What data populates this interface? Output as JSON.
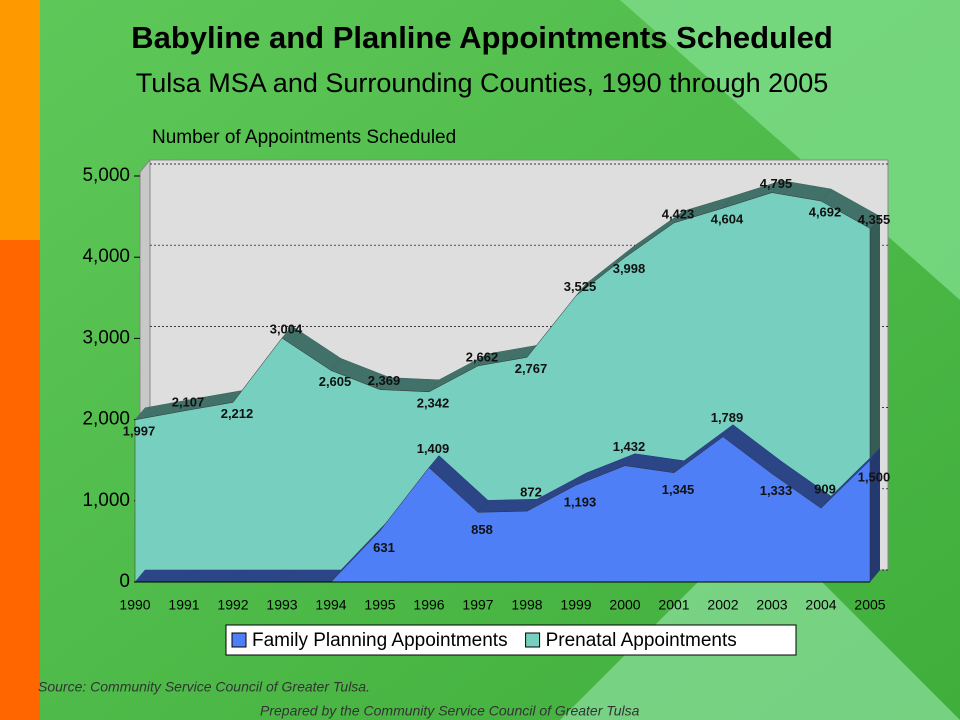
{
  "chart_data": {
    "type": "area",
    "title": "Babyline and Planline Appointments Scheduled",
    "subtitle": "Tulsa MSA and Surrounding Counties, 1990 through 2005",
    "y_label": "Number of Appointments Scheduled",
    "categories": [
      "1990",
      "1991",
      "1992",
      "1993",
      "1994",
      "1995",
      "1996",
      "1997",
      "1998",
      "1999",
      "2000",
      "2001",
      "2002",
      "2003",
      "2004",
      "2005"
    ],
    "series": [
      {
        "name": "Prenatal Appointments",
        "color": "#77cfc0",
        "values": [
          1997,
          2107,
          2212,
          3004,
          2605,
          2369,
          2342,
          2662,
          2767,
          3525,
          3998,
          4423,
          4604,
          4795,
          4692,
          4355
        ],
        "value_labels": [
          "1,997",
          "2,107",
          "2,212",
          "3,004",
          "2,605",
          "2,369",
          "2,342",
          "2,662",
          "2,767",
          "3,525",
          "3,998",
          "4,423",
          "4,604",
          "4,795",
          "4,692",
          "4,355"
        ]
      },
      {
        "name": "Family Planning Appointments",
        "color": "#4f7ff7",
        "values": [
          0,
          0,
          0,
          0,
          0,
          631,
          1409,
          858,
          872,
          1193,
          1432,
          1345,
          1789,
          1333,
          909,
          1500
        ],
        "value_labels": [
          null,
          null,
          null,
          null,
          null,
          "631",
          "1,409",
          "858",
          "872",
          "1,193",
          "1,432",
          "1,345",
          "1,789",
          "1,333",
          "909",
          "1,500"
        ]
      }
    ],
    "legend_order": [
      1,
      0
    ],
    "ylim": [
      0,
      5000
    ],
    "yticks": [
      0,
      {
        "value": 1000,
        "label": "1,000"
      },
      {
        "value": 2000,
        "label": "2,000"
      },
      {
        "value": 3000,
        "label": "3,000"
      },
      {
        "value": 4000,
        "label": "4,000"
      },
      {
        "value": 5000,
        "label": "5,000"
      }
    ],
    "grid": true
  },
  "footer": {
    "source": "Source: Community Service Council of Greater Tulsa.",
    "prepared": "Prepared by the Community Service Council of Greater Tulsa"
  }
}
